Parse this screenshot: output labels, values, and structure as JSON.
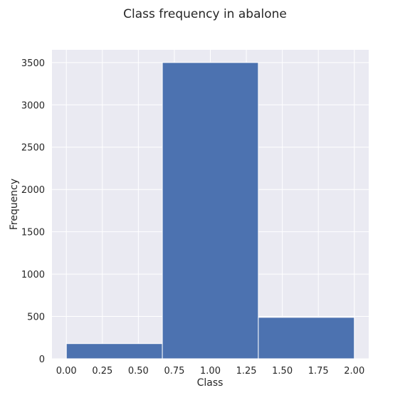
{
  "chart_data": {
    "type": "bar",
    "title": "Class frequency in abalone",
    "xlabel": "Class",
    "ylabel": "Frequency",
    "bins": [
      {
        "x0": 0.0,
        "x1": 0.6667,
        "value": 179
      },
      {
        "x0": 0.6667,
        "x1": 1.3333,
        "value": 3500
      },
      {
        "x0": 1.3333,
        "x1": 2.0,
        "value": 489
      }
    ],
    "xlim": [
      -0.1,
      2.1
    ],
    "ylim": [
      0,
      3650
    ],
    "xticks": [
      0.0,
      0.25,
      0.5,
      0.75,
      1.0,
      1.25,
      1.5,
      1.75,
      2.0
    ],
    "xtick_labels": [
      "0.00",
      "0.25",
      "0.50",
      "0.75",
      "1.00",
      "1.25",
      "1.50",
      "1.75",
      "2.00"
    ],
    "yticks": [
      0,
      500,
      1000,
      1500,
      2000,
      2500,
      3000,
      3500
    ],
    "ytick_labels": [
      "0",
      "500",
      "1000",
      "1500",
      "2000",
      "2500",
      "3000",
      "3500"
    ],
    "grid": true,
    "colors": {
      "bar": "#4c72b0",
      "background": "#eaeaf2",
      "grid": "#ffffff"
    }
  }
}
